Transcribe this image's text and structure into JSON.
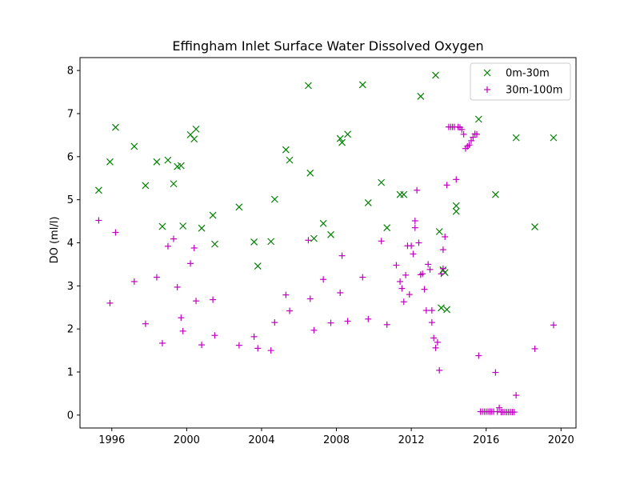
{
  "chart_data": {
    "type": "scatter",
    "title": "Effingham Inlet Surface Water Dissolved Oxygen",
    "xlabel": "",
    "ylabel": "DO (ml/l)",
    "xlim": [
      1994.3,
      2020.8
    ],
    "ylim": [
      -0.3,
      8.3
    ],
    "x_ticks": [
      1996,
      2000,
      2004,
      2008,
      2012,
      2016,
      2020
    ],
    "y_ticks": [
      0,
      1,
      2,
      3,
      4,
      5,
      6,
      7,
      8
    ],
    "grid": false,
    "legend_position": "top-right",
    "series": [
      {
        "name": "0m-30m",
        "marker": "x",
        "color": "#008000",
        "points": [
          [
            1995.3,
            5.22
          ],
          [
            1995.9,
            5.88
          ],
          [
            1996.2,
            6.68
          ],
          [
            1997.2,
            6.24
          ],
          [
            1997.8,
            5.33
          ],
          [
            1998.4,
            5.88
          ],
          [
            1998.7,
            4.38
          ],
          [
            1999.0,
            5.92
          ],
          [
            1999.3,
            5.37
          ],
          [
            1999.5,
            5.77
          ],
          [
            1999.7,
            5.79
          ],
          [
            1999.8,
            4.39
          ],
          [
            2000.2,
            6.51
          ],
          [
            2000.4,
            6.41
          ],
          [
            2000.5,
            6.64
          ],
          [
            2000.8,
            4.34
          ],
          [
            2001.4,
            4.64
          ],
          [
            2001.5,
            3.97
          ],
          [
            2002.8,
            4.83
          ],
          [
            2003.6,
            4.02
          ],
          [
            2003.8,
            3.46
          ],
          [
            2004.5,
            4.03
          ],
          [
            2004.7,
            5.01
          ],
          [
            2005.3,
            6.16
          ],
          [
            2005.5,
            5.92
          ],
          [
            2006.5,
            7.65
          ],
          [
            2006.6,
            5.62
          ],
          [
            2006.8,
            4.1
          ],
          [
            2007.3,
            4.45
          ],
          [
            2007.7,
            4.19
          ],
          [
            2008.2,
            6.42
          ],
          [
            2008.3,
            6.33
          ],
          [
            2008.6,
            6.52
          ],
          [
            2009.4,
            7.67
          ],
          [
            2009.7,
            4.93
          ],
          [
            2010.4,
            5.4
          ],
          [
            2010.7,
            4.35
          ],
          [
            2011.4,
            5.12
          ],
          [
            2011.6,
            5.12
          ],
          [
            2012.5,
            7.4
          ],
          [
            2013.3,
            7.89
          ],
          [
            2013.5,
            4.26
          ],
          [
            2013.6,
            2.49
          ],
          [
            2013.7,
            3.37
          ],
          [
            2013.8,
            3.31
          ],
          [
            2013.9,
            2.45
          ],
          [
            2014.4,
            4.73
          ],
          [
            2014.4,
            4.86
          ],
          [
            2015.6,
            6.87
          ],
          [
            2016.5,
            5.12
          ],
          [
            2017.6,
            6.44
          ],
          [
            2018.6,
            4.37
          ],
          [
            2019.6,
            6.44
          ]
        ]
      },
      {
        "name": "30m-100m",
        "marker": "+",
        "color": "#bf00bf",
        "points": [
          [
            1995.3,
            4.52
          ],
          [
            1995.9,
            2.6
          ],
          [
            1996.2,
            4.24
          ],
          [
            1997.2,
            3.1
          ],
          [
            1997.8,
            2.12
          ],
          [
            1998.4,
            3.2
          ],
          [
            1998.7,
            1.67
          ],
          [
            1999.0,
            3.92
          ],
          [
            1999.3,
            4.09
          ],
          [
            1999.5,
            2.97
          ],
          [
            1999.7,
            2.26
          ],
          [
            1999.8,
            1.95
          ],
          [
            2000.2,
            3.52
          ],
          [
            2000.4,
            3.88
          ],
          [
            2000.5,
            2.65
          ],
          [
            2000.8,
            1.63
          ],
          [
            2001.4,
            2.68
          ],
          [
            2001.5,
            1.85
          ],
          [
            2002.8,
            1.62
          ],
          [
            2003.6,
            1.82
          ],
          [
            2003.8,
            1.55
          ],
          [
            2004.5,
            1.5
          ],
          [
            2004.7,
            2.15
          ],
          [
            2005.3,
            2.79
          ],
          [
            2005.5,
            2.42
          ],
          [
            2006.5,
            4.06
          ],
          [
            2006.6,
            2.7
          ],
          [
            2006.8,
            1.97
          ],
          [
            2007.3,
            3.15
          ],
          [
            2007.7,
            2.14
          ],
          [
            2008.2,
            2.84
          ],
          [
            2008.3,
            3.7
          ],
          [
            2008.6,
            2.18
          ],
          [
            2009.4,
            3.2
          ],
          [
            2009.7,
            2.23
          ],
          [
            2010.4,
            4.04
          ],
          [
            2010.7,
            2.1
          ],
          [
            2011.2,
            3.48
          ],
          [
            2011.4,
            3.1
          ],
          [
            2011.5,
            2.94
          ],
          [
            2011.6,
            2.63
          ],
          [
            2011.7,
            3.25
          ],
          [
            2011.8,
            3.93
          ],
          [
            2011.9,
            2.8
          ],
          [
            2012.0,
            3.93
          ],
          [
            2012.1,
            3.74
          ],
          [
            2012.2,
            4.51
          ],
          [
            2012.2,
            4.35
          ],
          [
            2012.3,
            5.22
          ],
          [
            2012.4,
            4.0
          ],
          [
            2012.5,
            3.26
          ],
          [
            2012.6,
            3.28
          ],
          [
            2012.7,
            2.92
          ],
          [
            2012.8,
            2.43
          ],
          [
            2012.9,
            3.5
          ],
          [
            2013.0,
            3.38
          ],
          [
            2013.1,
            2.43
          ],
          [
            2013.1,
            2.15
          ],
          [
            2013.2,
            1.79
          ],
          [
            2013.3,
            1.56
          ],
          [
            2013.4,
            1.69
          ],
          [
            2013.5,
            1.04
          ],
          [
            2013.6,
            3.28
          ],
          [
            2013.7,
            3.4
          ],
          [
            2013.7,
            3.84
          ],
          [
            2013.8,
            4.14
          ],
          [
            2013.9,
            5.34
          ],
          [
            2014.0,
            6.69
          ],
          [
            2014.1,
            6.69
          ],
          [
            2014.2,
            6.69
          ],
          [
            2014.3,
            6.69
          ],
          [
            2014.4,
            5.47
          ],
          [
            2014.5,
            6.69
          ],
          [
            2014.6,
            6.68
          ],
          [
            2014.7,
            6.63
          ],
          [
            2014.8,
            6.52
          ],
          [
            2014.9,
            6.19
          ],
          [
            2015.0,
            6.24
          ],
          [
            2015.1,
            6.27
          ],
          [
            2015.2,
            6.37
          ],
          [
            2015.3,
            6.45
          ],
          [
            2015.4,
            6.53
          ],
          [
            2015.5,
            6.52
          ],
          [
            2015.6,
            1.38
          ],
          [
            2015.7,
            0.08
          ],
          [
            2015.8,
            0.08
          ],
          [
            2015.9,
            0.08
          ],
          [
            2016.0,
            0.08
          ],
          [
            2016.1,
            0.08
          ],
          [
            2016.2,
            0.08
          ],
          [
            2016.3,
            0.08
          ],
          [
            2016.4,
            0.08
          ],
          [
            2016.5,
            0.99
          ],
          [
            2016.6,
            0.08
          ],
          [
            2016.7,
            0.17
          ],
          [
            2016.8,
            0.07
          ],
          [
            2016.9,
            0.07
          ],
          [
            2017.0,
            0.07
          ],
          [
            2017.1,
            0.07
          ],
          [
            2017.2,
            0.07
          ],
          [
            2017.3,
            0.07
          ],
          [
            2017.4,
            0.07
          ],
          [
            2017.5,
            0.07
          ],
          [
            2017.6,
            0.46
          ],
          [
            2018.6,
            1.54
          ],
          [
            2019.6,
            2.09
          ]
        ]
      }
    ]
  }
}
